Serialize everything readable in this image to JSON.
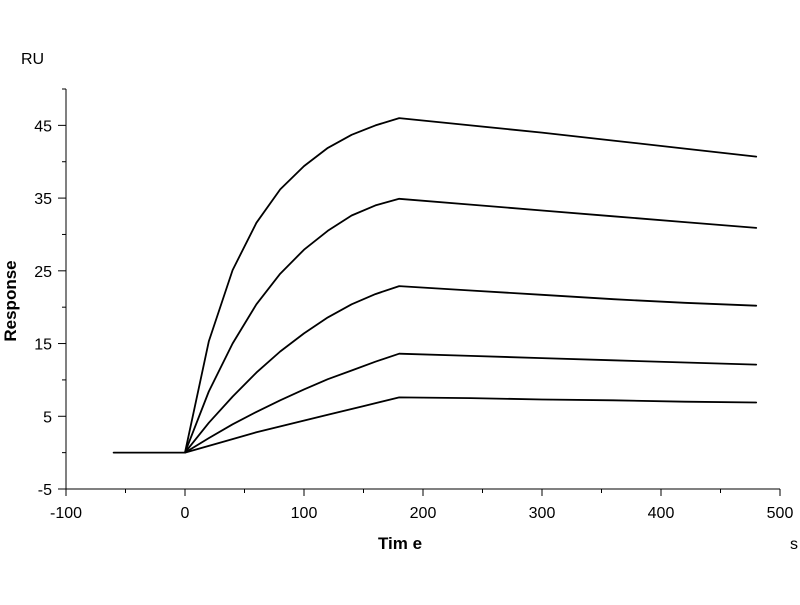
{
  "chart_data": {
    "type": "line",
    "title": "",
    "xlabel": "Tim e",
    "ylabel": "Response",
    "x_unit": "s",
    "y_unit": "RU",
    "xlim": [
      -100,
      500
    ],
    "ylim": [
      -5,
      50
    ],
    "x_ticks": [
      -100,
      0,
      100,
      200,
      300,
      400,
      500
    ],
    "y_ticks": [
      -5,
      5,
      15,
      25,
      35,
      45
    ],
    "x_tick_labels": [
      "-100",
      "0",
      "100",
      "200",
      "300",
      "400",
      "500"
    ],
    "y_tick_labels": [
      "-5",
      "5",
      "15",
      "25",
      "35",
      "45"
    ],
    "grid": false,
    "legend": "none",
    "line_color": "#000000",
    "series": [
      {
        "x": [
          -60,
          0,
          20,
          40,
          60,
          80,
          100,
          120,
          140,
          160,
          180,
          240,
          300,
          360,
          420,
          480
        ],
        "values": [
          0,
          0,
          15.3,
          25.1,
          31.6,
          36.2,
          39.4,
          41.9,
          43.7,
          45.0,
          46.0,
          45.0,
          44.0,
          42.9,
          41.8,
          40.7
        ]
      },
      {
        "x": [
          0,
          20,
          40,
          60,
          80,
          100,
          120,
          140,
          160,
          180,
          240,
          300,
          360,
          420,
          480
        ],
        "values": [
          0,
          8.4,
          15.0,
          20.4,
          24.6,
          27.9,
          30.5,
          32.6,
          34.0,
          34.9,
          34.1,
          33.3,
          32.5,
          31.7,
          30.9
        ]
      },
      {
        "x": [
          0,
          20,
          40,
          60,
          80,
          100,
          120,
          140,
          160,
          180,
          240,
          300,
          360,
          420,
          480
        ],
        "values": [
          0,
          4.1,
          7.7,
          11.0,
          13.9,
          16.4,
          18.6,
          20.4,
          21.8,
          22.9,
          22.3,
          21.7,
          21.1,
          20.6,
          20.2
        ]
      },
      {
        "x": [
          0,
          20,
          40,
          60,
          80,
          100,
          120,
          140,
          160,
          180,
          240,
          300,
          360,
          420,
          480
        ],
        "values": [
          0,
          2.0,
          3.9,
          5.6,
          7.2,
          8.7,
          10.1,
          11.3,
          12.5,
          13.6,
          13.3,
          13.0,
          12.7,
          12.4,
          12.1
        ]
      },
      {
        "x": [
          0,
          30,
          60,
          90,
          120,
          150,
          180,
          240,
          300,
          360,
          420,
          480
        ],
        "values": [
          0,
          1.4,
          2.8,
          4.0,
          5.2,
          6.4,
          7.6,
          7.5,
          7.3,
          7.2,
          7.0,
          6.9
        ]
      }
    ]
  }
}
